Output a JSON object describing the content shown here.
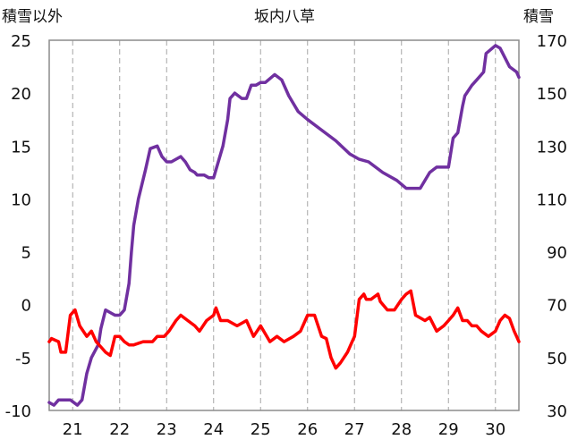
{
  "chart_data": {
    "type": "line",
    "title": "坂内八草",
    "left_axis_label": "積雪以外",
    "right_axis_label": "積雪",
    "ylim_left": [
      -10,
      25
    ],
    "yticks_left": [
      25,
      20,
      15,
      10,
      5,
      0,
      -5,
      -10
    ],
    "ylim_right": [
      30,
      170
    ],
    "yticks_right": [
      170,
      150,
      130,
      110,
      90,
      70,
      50,
      30
    ],
    "xlim": [
      20.5,
      30.5
    ],
    "x_ticks": [
      21,
      22,
      23,
      24,
      25,
      26,
      27,
      28,
      29,
      30
    ],
    "x_tick_labels": [
      "21",
      "22",
      "23",
      "24",
      "25",
      "26",
      "27",
      "28",
      "29",
      "30"
    ],
    "grid": "vertical dashed at each day",
    "series": [
      {
        "axis": "right",
        "color": "#7030a0",
        "x": [
          20.5,
          20.6,
          20.7,
          20.95,
          21.1,
          21.2,
          21.3,
          21.4,
          21.55,
          21.6,
          21.7,
          21.8,
          21.9,
          22.0,
          22.05,
          22.1,
          22.2,
          22.25,
          22.3,
          22.4,
          22.55,
          22.65,
          22.8,
          22.9,
          23.0,
          23.1,
          23.3,
          23.4,
          23.5,
          23.6,
          23.65,
          23.8,
          23.9,
          24.0,
          24.05,
          24.2,
          24.3,
          24.35,
          24.45,
          24.6,
          24.7,
          24.8,
          24.9,
          25.0,
          25.1,
          25.3,
          25.45,
          25.6,
          25.8,
          26.0,
          26.3,
          26.6,
          26.9,
          27.1,
          27.3,
          27.6,
          27.9,
          28.1,
          28.25,
          28.4,
          28.6,
          28.75,
          28.9,
          29.0,
          29.1,
          29.2,
          29.3,
          29.35,
          29.5,
          29.6,
          29.75,
          29.8,
          30.0,
          30.1,
          30.3,
          30.45,
          30.5
        ],
        "values": [
          33,
          32,
          34,
          34,
          32,
          34,
          44,
          50,
          55,
          61,
          68,
          67,
          66,
          66,
          67,
          68,
          78,
          90,
          100,
          110,
          121,
          129,
          130,
          126,
          124,
          124,
          126,
          124,
          121,
          120,
          119,
          119,
          118,
          118,
          121,
          130,
          140,
          148,
          150,
          148,
          148,
          153,
          153,
          154,
          154,
          157,
          155,
          149,
          143,
          140,
          136,
          132,
          127,
          125,
          124,
          120,
          117,
          114,
          114,
          114,
          120,
          122,
          122,
          122,
          133,
          135,
          145,
          149,
          153,
          155,
          158,
          165,
          168,
          167,
          160,
          158,
          156
        ]
      },
      {
        "axis": "left",
        "color": "#ff0000",
        "x": [
          20.5,
          20.55,
          20.7,
          20.75,
          20.85,
          20.95,
          21.05,
          21.15,
          21.3,
          21.4,
          21.5,
          21.6,
          21.7,
          21.8,
          21.9,
          22.0,
          22.1,
          22.2,
          22.3,
          22.5,
          22.7,
          22.8,
          22.95,
          23.05,
          23.2,
          23.3,
          23.45,
          23.6,
          23.7,
          23.85,
          24.0,
          24.05,
          24.15,
          24.3,
          24.5,
          24.7,
          24.85,
          25.0,
          25.2,
          25.35,
          25.5,
          25.7,
          25.85,
          26.0,
          26.15,
          26.3,
          26.4,
          26.5,
          26.6,
          26.7,
          26.85,
          26.95,
          27.0,
          27.1,
          27.2,
          27.25,
          27.35,
          27.5,
          27.55,
          27.7,
          27.85,
          28.0,
          28.1,
          28.2,
          28.3,
          28.5,
          28.6,
          28.75,
          28.9,
          29.0,
          29.1,
          29.2,
          29.3,
          29.4,
          29.5,
          29.6,
          29.7,
          29.85,
          30.0,
          30.1,
          30.2,
          30.3,
          30.4,
          30.45,
          30.5
        ],
        "values": [
          -3.5,
          -3.2,
          -3.5,
          -4.5,
          -4.5,
          -1.0,
          -0.5,
          -2.0,
          -3.0,
          -2.5,
          -3.5,
          -4.0,
          -4.5,
          -4.8,
          -3.0,
          -3.0,
          -3.5,
          -3.8,
          -3.8,
          -3.5,
          -3.5,
          -3.0,
          -3.0,
          -2.5,
          -1.5,
          -1.0,
          -1.5,
          -2.0,
          -2.5,
          -1.5,
          -1.0,
          -0.3,
          -1.5,
          -1.5,
          -2.0,
          -1.5,
          -3.0,
          -2.0,
          -3.5,
          -3.0,
          -3.5,
          -3.0,
          -2.5,
          -1.0,
          -1.0,
          -3.0,
          -3.2,
          -5.0,
          -6.0,
          -5.5,
          -4.5,
          -3.5,
          -3.0,
          0.5,
          1.0,
          0.5,
          0.5,
          1.0,
          0.3,
          -0.5,
          -0.5,
          0.5,
          1.0,
          1.3,
          -1.0,
          -1.5,
          -1.2,
          -2.5,
          -2.0,
          -1.5,
          -1.0,
          -0.3,
          -1.5,
          -1.5,
          -2.0,
          -2.0,
          -2.5,
          -3.0,
          -2.5,
          -1.5,
          -1.0,
          -1.3,
          -2.5,
          -3.0,
          -3.5
        ]
      }
    ]
  }
}
